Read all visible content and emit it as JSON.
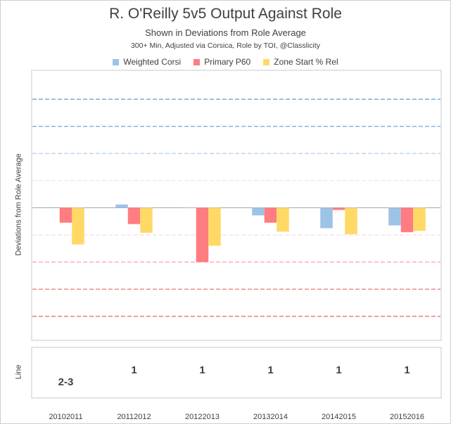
{
  "chart_data": {
    "type": "bar",
    "title": "R. O'Reilly 5v5 Output Against Role",
    "subtitle": "Shown  in Deviations from Role Average",
    "caption": "300+ Min, Adjusted via Corsica, Role by TOI, @Classlicity",
    "ylabel": "Deviations from Role Average",
    "lower_ylabel": "Line",
    "categories": [
      "20102011",
      "20112012",
      "20122013",
      "20132014",
      "20142015",
      "20152016"
    ],
    "series": [
      {
        "name": "Weighted Corsi",
        "color": "#9dc3e6",
        "values": [
          0.02,
          0.12,
          0.0,
          -0.28,
          -0.75,
          -0.65
        ]
      },
      {
        "name": "Primary P60",
        "color": "#ff7c80",
        "values": [
          -0.55,
          -0.6,
          -2.0,
          -0.55,
          -0.08,
          -0.9
        ]
      },
      {
        "name": "Zone Start % Rel",
        "color": "#ffd966",
        "values": [
          -1.35,
          -0.92,
          -1.4,
          -0.88,
          -0.97,
          -0.85
        ]
      }
    ],
    "ylim": [
      -4.5,
      4.5
    ],
    "reference_lines": [
      {
        "y": 4,
        "color": "#5b9bd5",
        "opacity": 1.0
      },
      {
        "y": 3,
        "color": "#5b9bd5",
        "opacity": 0.8
      },
      {
        "y": 2,
        "color": "#9dc3e6",
        "opacity": 0.75
      },
      {
        "y": 1,
        "color": "#f4b0c4",
        "opacity": 0.4
      },
      {
        "y": -1,
        "color": "#f4b0c4",
        "opacity": 0.45
      },
      {
        "y": -2,
        "color": "#ff7c80",
        "opacity": 0.65
      },
      {
        "y": -3,
        "color": "#e06666",
        "opacity": 0.8
      },
      {
        "y": -4,
        "color": "#e06666",
        "opacity": 1.0
      }
    ],
    "line_values": [
      "2-3",
      "1",
      "1",
      "1",
      "1",
      "1"
    ],
    "line_offsets": [
      1,
      0,
      0,
      0,
      0,
      0
    ],
    "grid": false,
    "legend": "top-center"
  }
}
